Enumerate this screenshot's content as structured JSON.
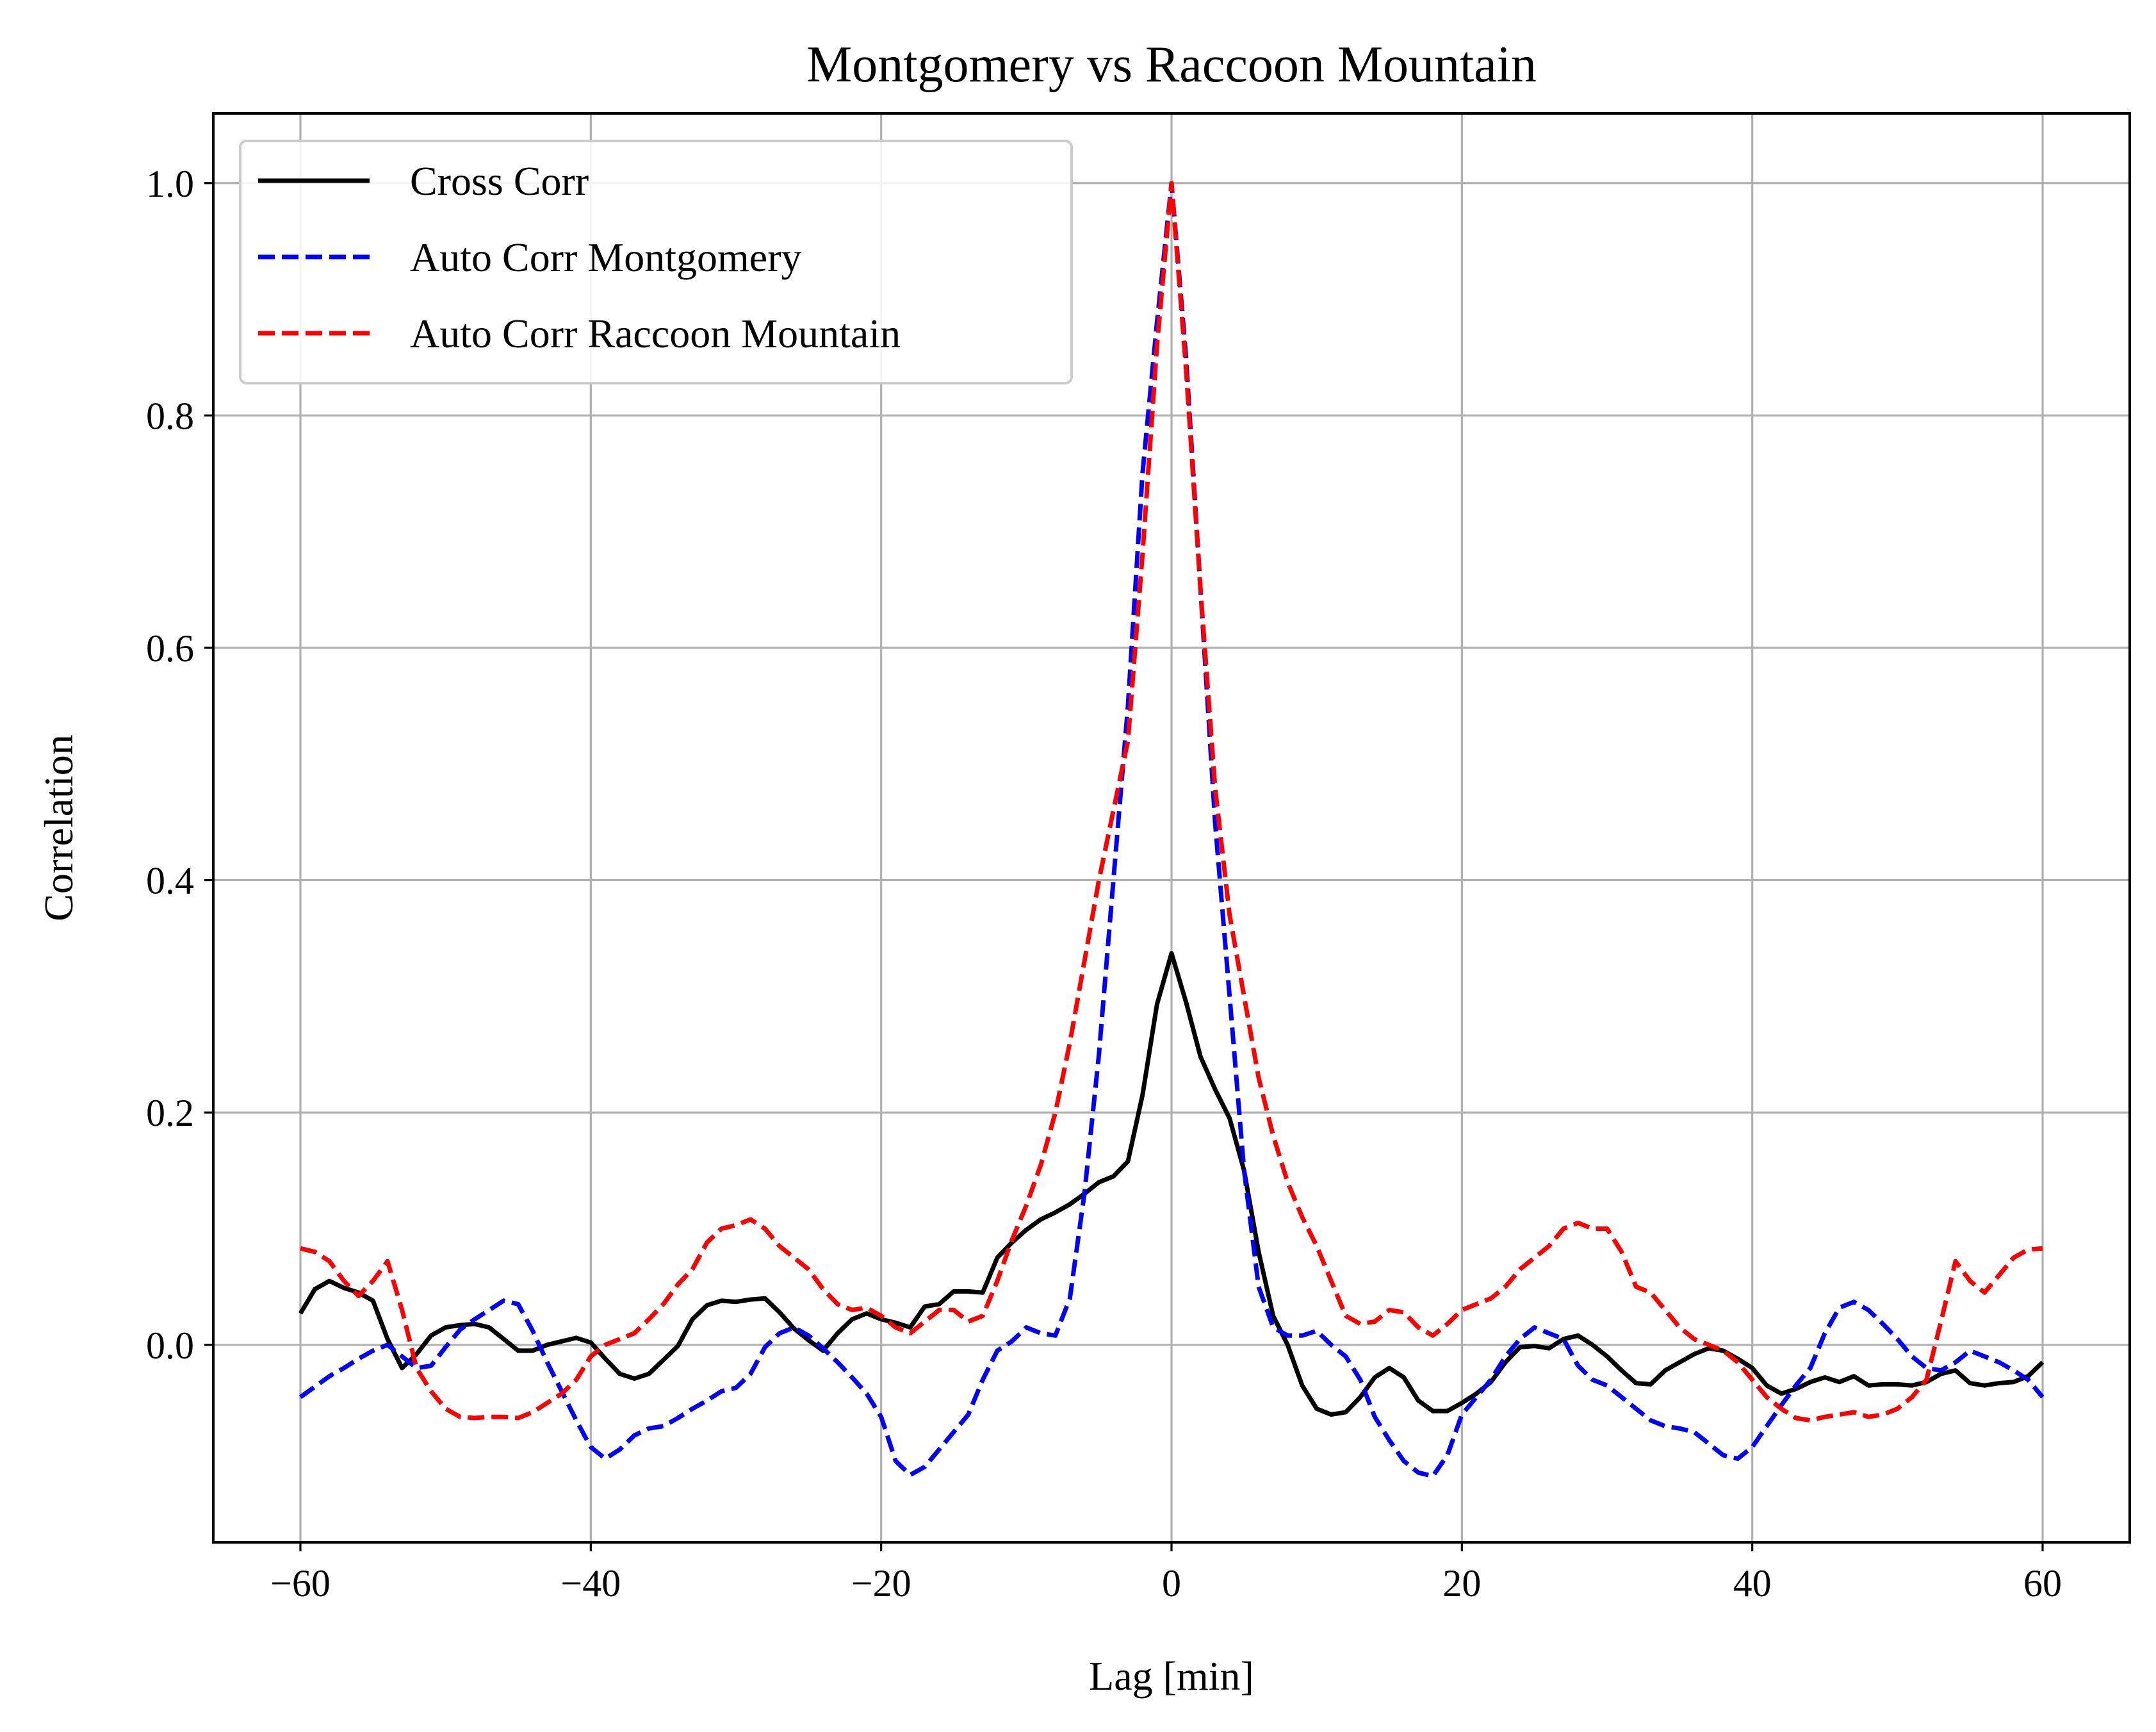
{
  "chart_data": {
    "type": "line",
    "title": "Montgomery vs Raccoon Mountain",
    "xlabel": "Lag [min]",
    "ylabel": "Correlation",
    "xlim": [
      -66,
      66
    ],
    "ylim": [
      -0.17,
      1.06
    ],
    "grid": true,
    "legend_position": "top-left",
    "x_ticks": [
      -60,
      -40,
      -20,
      0,
      20,
      40,
      60
    ],
    "x_tick_labels": [
      "−60",
      "−40",
      "−20",
      "0",
      "20",
      "40",
      "60"
    ],
    "y_ticks": [
      0.0,
      0.2,
      0.4,
      0.6,
      0.8,
      1.0
    ],
    "y_tick_labels": [
      "0.0",
      "0.2",
      "0.4",
      "0.6",
      "0.8",
      "1.0"
    ],
    "series": [
      {
        "name": "Cross Corr",
        "color": "#000000",
        "dash": "solid",
        "x": [
          -60,
          -59,
          -58,
          -57,
          -56,
          -55,
          -54,
          -53,
          -52,
          -51,
          -50,
          -49,
          -48,
          -47,
          -46,
          -45,
          -44,
          -43,
          -42,
          -41,
          -40,
          -39,
          -38,
          -37,
          -36,
          -35,
          -34,
          -33,
          -32,
          -31,
          -30,
          -29,
          -28,
          -27,
          -26,
          -25,
          -24,
          -23,
          -22,
          -21,
          -20,
          -19,
          -18,
          -17,
          -16,
          -15,
          -14,
          -13,
          -12,
          -11,
          -10,
          -9,
          -8,
          -7,
          -6,
          -5,
          -4,
          -3,
          -2,
          -1,
          0,
          1,
          2,
          3,
          4,
          5,
          6,
          7,
          8,
          9,
          10,
          11,
          12,
          13,
          14,
          15,
          16,
          17,
          18,
          19,
          20,
          21,
          22,
          23,
          24,
          25,
          26,
          27,
          28,
          29,
          30,
          31,
          32,
          33,
          34,
          35,
          36,
          37,
          38,
          39,
          40,
          41,
          42,
          43,
          44,
          45,
          46,
          47,
          48,
          49,
          50,
          51,
          52,
          53,
          54,
          55,
          56,
          57,
          58,
          59,
          60
        ],
        "y": [
          0.027,
          0.048,
          0.055,
          0.049,
          0.045,
          0.038,
          0.005,
          -0.02,
          -0.008,
          0.008,
          0.015,
          0.017,
          0.018,
          0.015,
          0.005,
          -0.005,
          -0.005,
          0.0,
          0.003,
          0.006,
          0.002,
          -0.012,
          -0.025,
          -0.029,
          -0.025,
          -0.013,
          -0.001,
          0.022,
          0.034,
          0.038,
          0.037,
          0.039,
          0.04,
          0.028,
          0.014,
          0.004,
          -0.005,
          0.01,
          0.022,
          0.027,
          0.022,
          0.019,
          0.015,
          0.033,
          0.035,
          0.046,
          0.046,
          0.045,
          0.075,
          0.088,
          0.099,
          0.108,
          0.114,
          0.121,
          0.13,
          0.14,
          0.145,
          0.158,
          0.215,
          0.293,
          0.337,
          0.295,
          0.248,
          0.22,
          0.195,
          0.15,
          0.08,
          0.025,
          0.0,
          -0.035,
          -0.055,
          -0.06,
          -0.058,
          -0.045,
          -0.028,
          -0.02,
          -0.028,
          -0.048,
          -0.057,
          -0.057,
          -0.05,
          -0.042,
          -0.032,
          -0.015,
          -0.002,
          -0.001,
          -0.003,
          0.005,
          0.008,
          0.0,
          -0.01,
          -0.022,
          -0.033,
          -0.034,
          -0.022,
          -0.015,
          -0.008,
          -0.003,
          -0.005,
          -0.012,
          -0.02,
          -0.035,
          -0.042,
          -0.038,
          -0.032,
          -0.028,
          -0.032,
          -0.027,
          -0.035,
          -0.034,
          -0.034,
          -0.035,
          -0.032,
          -0.025,
          -0.022,
          -0.033,
          -0.035,
          -0.033,
          -0.032,
          -0.027,
          -0.015
        ]
      },
      {
        "name": "Auto Corr Montgomery",
        "color": "#0000ff",
        "dash": "dashed",
        "x": [
          -60,
          -59,
          -58,
          -57,
          -56,
          -55,
          -54,
          -53,
          -52,
          -51,
          -50,
          -49,
          -48,
          -47,
          -46,
          -45,
          -44,
          -43,
          -42,
          -41,
          -40,
          -39,
          -38,
          -37,
          -36,
          -35,
          -34,
          -33,
          -32,
          -31,
          -30,
          -29,
          -28,
          -27,
          -26,
          -25,
          -24,
          -23,
          -22,
          -21,
          -20,
          -19,
          -18,
          -17,
          -16,
          -15,
          -14,
          -13,
          -12,
          -11,
          -10,
          -9,
          -8,
          -7,
          -6,
          -5,
          -4,
          -3,
          -2,
          -1,
          0,
          1,
          2,
          3,
          4,
          5,
          6,
          7,
          8,
          9,
          10,
          11,
          12,
          13,
          14,
          15,
          16,
          17,
          18,
          19,
          20,
          21,
          22,
          23,
          24,
          25,
          26,
          27,
          28,
          29,
          30,
          31,
          32,
          33,
          34,
          35,
          36,
          37,
          38,
          39,
          40,
          41,
          42,
          43,
          44,
          45,
          46,
          47,
          48,
          49,
          50,
          51,
          52,
          53,
          54,
          55,
          56,
          57,
          58,
          59,
          60
        ],
        "y": [
          -0.045,
          -0.036,
          -0.027,
          -0.02,
          -0.012,
          -0.005,
          0.0,
          -0.01,
          -0.02,
          -0.018,
          -0.002,
          0.013,
          0.022,
          0.03,
          0.038,
          0.035,
          0.012,
          -0.015,
          -0.04,
          -0.065,
          -0.088,
          -0.098,
          -0.09,
          -0.078,
          -0.072,
          -0.07,
          -0.063,
          -0.055,
          -0.048,
          -0.04,
          -0.037,
          -0.025,
          -0.002,
          0.01,
          0.015,
          0.008,
          -0.003,
          -0.015,
          -0.028,
          -0.042,
          -0.062,
          -0.1,
          -0.112,
          -0.105,
          -0.09,
          -0.075,
          -0.06,
          -0.03,
          -0.005,
          0.003,
          0.015,
          0.01,
          0.008,
          0.04,
          0.13,
          0.25,
          0.4,
          0.55,
          0.75,
          0.88,
          1.0,
          0.85,
          0.65,
          0.45,
          0.3,
          0.15,
          0.05,
          0.015,
          0.008,
          0.008,
          0.012,
          0.0,
          -0.01,
          -0.03,
          -0.062,
          -0.082,
          -0.1,
          -0.11,
          -0.113,
          -0.095,
          -0.06,
          -0.045,
          -0.03,
          -0.01,
          0.005,
          0.015,
          0.01,
          0.005,
          -0.018,
          -0.03,
          -0.035,
          -0.045,
          -0.055,
          -0.065,
          -0.07,
          -0.072,
          -0.075,
          -0.085,
          -0.095,
          -0.098,
          -0.088,
          -0.07,
          -0.052,
          -0.035,
          -0.02,
          0.01,
          0.032,
          0.037,
          0.03,
          0.018,
          0.005,
          -0.01,
          -0.02,
          -0.022,
          -0.015,
          -0.005,
          -0.01,
          -0.015,
          -0.022,
          -0.03,
          -0.045
        ]
      },
      {
        "name": "Auto Corr Raccoon Mountain",
        "color": "#ff0000",
        "dash": "dashed",
        "x": [
          -60,
          -59,
          -58,
          -57,
          -56,
          -55,
          -54,
          -53,
          -52,
          -51,
          -50,
          -49,
          -48,
          -47,
          -46,
          -45,
          -44,
          -43,
          -42,
          -41,
          -40,
          -39,
          -38,
          -37,
          -36,
          -35,
          -34,
          -33,
          -32,
          -31,
          -30,
          -29,
          -28,
          -27,
          -26,
          -25,
          -24,
          -23,
          -22,
          -21,
          -20,
          -19,
          -18,
          -17,
          -16,
          -15,
          -14,
          -13,
          -12,
          -11,
          -10,
          -9,
          -8,
          -7,
          -6,
          -5,
          -4,
          -3,
          -2,
          -1,
          0,
          1,
          2,
          3,
          4,
          5,
          6,
          7,
          8,
          9,
          10,
          11,
          12,
          13,
          14,
          15,
          16,
          17,
          18,
          19,
          20,
          21,
          22,
          23,
          24,
          25,
          26,
          27,
          28,
          29,
          30,
          31,
          32,
          33,
          34,
          35,
          36,
          37,
          38,
          39,
          40,
          41,
          42,
          43,
          44,
          45,
          46,
          47,
          48,
          49,
          50,
          51,
          52,
          53,
          54,
          55,
          56,
          57,
          58,
          59,
          60
        ],
        "y": [
          0.083,
          0.08,
          0.072,
          0.055,
          0.042,
          0.055,
          0.072,
          0.03,
          -0.02,
          -0.04,
          -0.055,
          -0.062,
          -0.063,
          -0.062,
          -0.062,
          -0.063,
          -0.058,
          -0.05,
          -0.042,
          -0.03,
          -0.01,
          0.0,
          0.005,
          0.01,
          0.022,
          0.035,
          0.052,
          0.065,
          0.088,
          0.1,
          0.103,
          0.108,
          0.1,
          0.085,
          0.075,
          0.065,
          0.048,
          0.035,
          0.03,
          0.032,
          0.025,
          0.015,
          0.01,
          0.02,
          0.03,
          0.03,
          0.02,
          0.025,
          0.055,
          0.09,
          0.12,
          0.155,
          0.2,
          0.26,
          0.33,
          0.4,
          0.46,
          0.52,
          0.68,
          0.86,
          1.0,
          0.84,
          0.65,
          0.48,
          0.37,
          0.3,
          0.23,
          0.18,
          0.14,
          0.11,
          0.085,
          0.055,
          0.025,
          0.018,
          0.02,
          0.03,
          0.028,
          0.015,
          0.008,
          0.018,
          0.03,
          0.035,
          0.04,
          0.05,
          0.065,
          0.075,
          0.085,
          0.1,
          0.105,
          0.1,
          0.1,
          0.08,
          0.05,
          0.045,
          0.03,
          0.015,
          0.005,
          0.0,
          -0.005,
          -0.015,
          -0.03,
          -0.045,
          -0.055,
          -0.063,
          -0.065,
          -0.062,
          -0.06,
          -0.058,
          -0.062,
          -0.06,
          -0.055,
          -0.045,
          -0.03,
          0.02,
          0.072,
          0.055,
          0.045,
          0.06,
          0.075,
          0.082,
          0.083
        ]
      }
    ]
  }
}
